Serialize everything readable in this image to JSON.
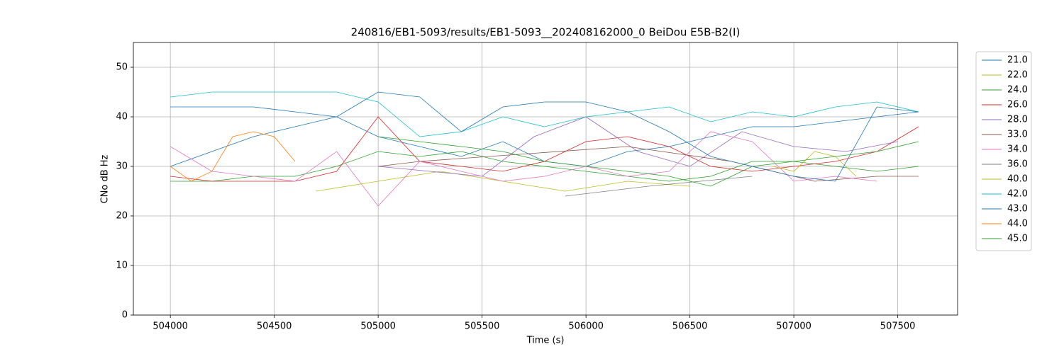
{
  "chart_data": {
    "type": "line",
    "title": "240816/EB1-5093/results/EB1-5093__202408162000_0 BeiDou E5B-B2(I)",
    "xlabel": "Time (s)",
    "ylabel": "CNo dB Hz",
    "xlim": [
      503822,
      507788
    ],
    "ylim": [
      0,
      55
    ],
    "xticks": [
      504000,
      504500,
      505000,
      505500,
      506000,
      506500,
      507000,
      507500
    ],
    "yticks": [
      0,
      10,
      20,
      30,
      40,
      50
    ],
    "grid": true,
    "legend": "outside-upper-right",
    "series": [
      {
        "name": "21.0",
        "color": "#1f77b4",
        "x": [
          504000,
          504200,
          504400,
          504600,
          504800,
          505000,
          505200,
          505400,
          505600,
          505800,
          506000,
          506200,
          506400,
          506600,
          506800,
          507000,
          507200,
          507400,
          507600
        ],
        "values": [
          30,
          33,
          36,
          38,
          40,
          36,
          34,
          32,
          35,
          31,
          30,
          33,
          34,
          36,
          38,
          38,
          39,
          40,
          41
        ]
      },
      {
        "name": "22.0",
        "color": "#bcbd22",
        "x": [
          504700,
          505000,
          505300,
          505900,
          506200,
          506500
        ],
        "values": [
          25,
          27,
          29,
          25,
          27,
          26
        ]
      },
      {
        "name": "24.0",
        "color": "#2ca02c",
        "x": [
          504000,
          504200,
          504400,
          504600,
          504800,
          505000,
          505200,
          505400,
          505600,
          505800,
          506000,
          506200,
          506400,
          506600,
          506800,
          507000,
          507200,
          507400,
          507600
        ],
        "values": [
          27,
          27,
          28,
          28,
          30,
          33,
          32,
          33,
          31,
          30,
          29,
          28,
          27,
          28,
          31,
          31,
          30,
          29,
          30
        ]
      },
      {
        "name": "26.0",
        "color": "#d62728",
        "x": [
          504000,
          504200,
          504400,
          504600,
          504800,
          505000,
          505200,
          505400,
          505600,
          505800,
          506000,
          506200,
          506400,
          506600,
          506800,
          507000,
          507200,
          507400,
          507600
        ],
        "values": [
          28,
          27,
          27,
          27,
          29,
          40,
          31,
          30,
          29,
          31,
          35,
          36,
          34,
          30,
          29,
          30,
          31,
          33,
          38
        ]
      },
      {
        "name": "28.0",
        "color": "#9467bd",
        "x": [
          505000,
          505250,
          505500,
          505750,
          506000,
          506250,
          506500,
          506750,
          507000,
          507250,
          507500
        ],
        "values": [
          30,
          29,
          28,
          36,
          40,
          33,
          30,
          37,
          34,
          33,
          35
        ]
      },
      {
        "name": "33.0",
        "color": "#8c564b",
        "x": [
          505000,
          505200,
          506200,
          506700,
          507100,
          507400,
          507600
        ],
        "values": [
          30,
          31,
          34,
          31,
          27,
          28,
          28
        ]
      },
      {
        "name": "34.0",
        "color": "#e377c2",
        "x": [
          504000,
          504200,
          504400,
          504600,
          504800,
          505000,
          505200,
          505400,
          505600,
          505800,
          506000,
          506200,
          506400,
          506600,
          506800,
          507000,
          507200,
          507400
        ],
        "values": [
          34,
          29,
          28,
          27,
          33,
          22,
          31,
          29,
          27,
          28,
          30,
          28,
          29,
          37,
          35,
          27,
          28,
          27
        ]
      },
      {
        "name": "36.0",
        "color": "#7f7f7f",
        "x": [
          505900,
          506300,
          506800
        ],
        "values": [
          24,
          26,
          28
        ]
      },
      {
        "name": "40.0",
        "color": "#bcbd22",
        "x": [
          506900,
          507000,
          507100,
          507200,
          507300
        ],
        "values": [
          30,
          29,
          33,
          32,
          28
        ]
      },
      {
        "name": "42.0",
        "color": "#17becf",
        "x": [
          504000,
          504200,
          504400,
          504600,
          504800,
          505000,
          505200,
          505400,
          505600,
          505800,
          506000,
          506200,
          506400,
          506600,
          506800,
          507000,
          507200,
          507400,
          507600
        ],
        "values": [
          44,
          45,
          45,
          45,
          45,
          43,
          36,
          37,
          40,
          38,
          40,
          41,
          42,
          39,
          41,
          40,
          42,
          43,
          41
        ]
      },
      {
        "name": "43.0",
        "color": "#1f77b4",
        "x": [
          504000,
          504200,
          504400,
          504600,
          504800,
          505000,
          505200,
          505400,
          505600,
          505800,
          506000,
          506200,
          506400,
          506600,
          506800,
          507000,
          507200,
          507400,
          507600
        ],
        "values": [
          42,
          42,
          42,
          41,
          40,
          45,
          44,
          37,
          42,
          43,
          43,
          41,
          37,
          32,
          30,
          28,
          27,
          42,
          41
        ]
      },
      {
        "name": "44.0",
        "color": "#ff7f0e",
        "x": [
          504000,
          504100,
          504200,
          504300,
          504400,
          504500,
          504600
        ],
        "values": [
          30,
          27,
          29,
          36,
          37,
          36,
          31
        ]
      },
      {
        "name": "45.0",
        "color": "#2ca02c",
        "x": [
          505000,
          505200,
          505400,
          505600,
          505800,
          506000,
          506200,
          506400,
          506600,
          506800,
          507000,
          507200,
          507400,
          507600
        ],
        "values": [
          36,
          35,
          34,
          33,
          31,
          30,
          29,
          28,
          26,
          30,
          31,
          32,
          33,
          35
        ]
      }
    ]
  }
}
